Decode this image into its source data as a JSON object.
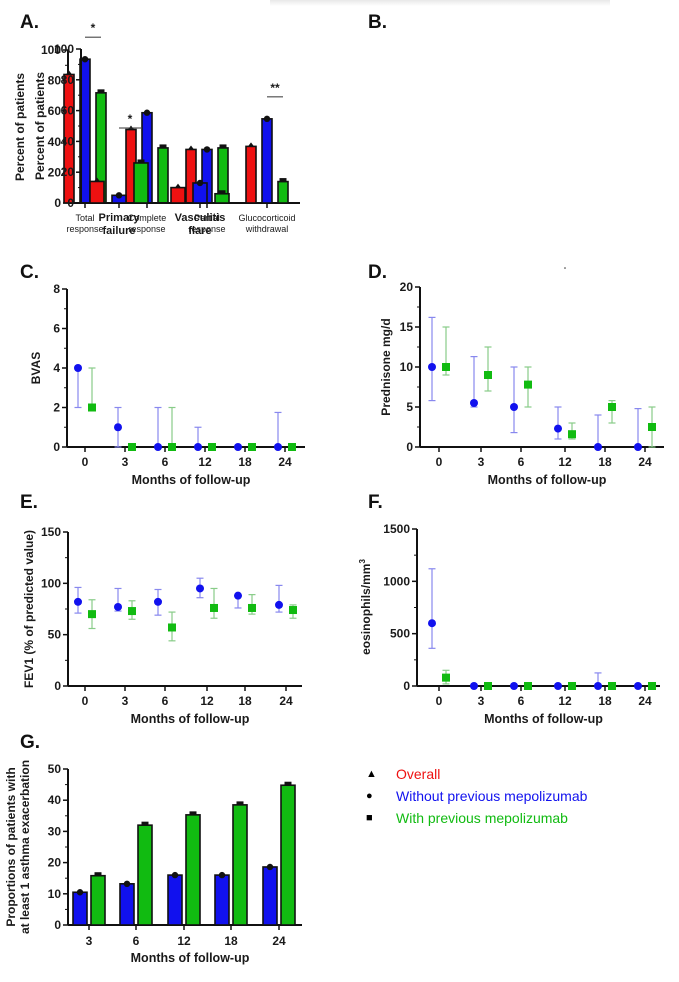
{
  "colors": {
    "overall": "#ee1111",
    "without": "#1111ee",
    "with": "#11bb11",
    "without_err": "#8888ee",
    "with_err": "#88cc88"
  },
  "legend": {
    "items": [
      {
        "marker": "▲",
        "label": "Overall",
        "color": "#ee1111"
      },
      {
        "marker": "●",
        "label": "Without previous mepolizumab",
        "color": "#1111ee"
      },
      {
        "marker": "■",
        "label": "With previous mepolizumab",
        "color": "#11bb11"
      }
    ]
  },
  "chart_data": [
    {
      "id": "A",
      "panel_label": "A.",
      "type": "bar",
      "ylabel": "Percent of patients",
      "xlabel": "",
      "ylim": [
        0,
        100
      ],
      "yticks": [
        0,
        20,
        40,
        60,
        80,
        100
      ],
      "categories": [
        [
          "Total",
          "response"
        ],
        [
          "Complete",
          "response"
        ],
        [
          "Partial",
          "response"
        ],
        [
          "Glucocorticoid",
          "withdrawal"
        ]
      ],
      "series": [
        {
          "name": "Overall",
          "values": [
            84,
            48,
            35,
            37
          ]
        },
        {
          "name": "Without previous mepolizumab",
          "values": [
            94,
            59,
            35,
            55
          ]
        },
        {
          "name": "With previous mepolizumab",
          "values": [
            72,
            36,
            36,
            14
          ]
        }
      ],
      "annotations": [
        {
          "text": "*",
          "category": 0,
          "between": [
            1,
            2
          ]
        },
        {
          "text": "**",
          "category": 3,
          "between": [
            1,
            2
          ]
        }
      ]
    },
    {
      "id": "B",
      "panel_label": "B.",
      "type": "bar",
      "ylabel": "Percent of patients",
      "xlabel": "",
      "ylim": [
        0,
        100
      ],
      "yticks": [
        0,
        20,
        40,
        60,
        80,
        100
      ],
      "categories": [
        [
          "Primary",
          "failure"
        ],
        [
          "Vasculitis",
          "flare"
        ]
      ],
      "series": [
        {
          "name": "Overall",
          "values": [
            14,
            10
          ]
        },
        {
          "name": "Without previous mepolizumab",
          "values": [
            5,
            13
          ]
        },
        {
          "name": "With previous mepolizumab",
          "values": [
            26,
            6
          ]
        }
      ],
      "annotations": [
        {
          "text": "*",
          "category": 0,
          "between": [
            1,
            2
          ]
        }
      ]
    },
    {
      "id": "C",
      "panel_label": "C.",
      "type": "scatter",
      "ylabel": "BVAS",
      "xlabel": "Months of follow-up",
      "ylim": [
        0,
        8
      ],
      "yticks": [
        0,
        2,
        4,
        6,
        8
      ],
      "categories": [
        "0",
        "3",
        "6",
        "12",
        "18",
        "24"
      ],
      "series": [
        {
          "name": "Without previous mepolizumab",
          "values": [
            4,
            1,
            0,
            0,
            0,
            0
          ],
          "err_low": [
            2,
            0,
            0,
            0,
            0,
            0
          ],
          "err_high": [
            4,
            2,
            2,
            1,
            0,
            1.75
          ]
        },
        {
          "name": "With previous mepolizumab",
          "values": [
            2,
            0,
            0,
            0,
            0,
            0
          ],
          "err_low": [
            2,
            0,
            0,
            0,
            0,
            0
          ],
          "err_high": [
            4,
            0,
            2,
            0,
            0,
            0
          ]
        }
      ]
    },
    {
      "id": "D",
      "panel_label": "D.",
      "type": "scatter",
      "ylabel": "Prednisone mg/d",
      "xlabel": "Months of follow-up",
      "ylim": [
        0,
        20
      ],
      "yticks": [
        0,
        5,
        10,
        15,
        20
      ],
      "categories": [
        "0",
        "3",
        "6",
        "12",
        "18",
        "24"
      ],
      "series": [
        {
          "name": "Without previous mepolizumab",
          "values": [
            10,
            5.5,
            5,
            2.3,
            0,
            0
          ],
          "err_low": [
            5.8,
            5,
            1.8,
            1,
            0,
            0
          ],
          "err_high": [
            16.2,
            11.3,
            10,
            5,
            4,
            4.8
          ]
        },
        {
          "name": "With previous mepolizumab",
          "values": [
            10,
            9,
            7.8,
            1.6,
            5,
            2.5
          ],
          "err_low": [
            9,
            7,
            5,
            1,
            3,
            0
          ],
          "err_high": [
            15,
            12.5,
            10,
            3,
            5.8,
            5
          ]
        }
      ]
    },
    {
      "id": "E",
      "panel_label": "E.",
      "type": "scatter",
      "ylabel": "FEV1 (% of predicted value)",
      "xlabel": "Months of follow-up",
      "ylim": [
        0,
        150
      ],
      "yticks": [
        0,
        50,
        100,
        150
      ],
      "categories": [
        "0",
        "3",
        "6",
        "12",
        "18",
        "24"
      ],
      "series": [
        {
          "name": "Without previous mepolizumab",
          "values": [
            82,
            77,
            82,
            95,
            88,
            79
          ],
          "err_low": [
            71,
            73,
            69,
            86,
            76,
            72
          ],
          "err_high": [
            96,
            95,
            94,
            105,
            88,
            98
          ]
        },
        {
          "name": "With previous mepolizumab",
          "values": [
            70,
            73,
            57,
            76,
            76,
            74
          ],
          "err_low": [
            56,
            65,
            44,
            66,
            70,
            66
          ],
          "err_high": [
            84,
            83,
            72,
            95,
            89,
            79
          ]
        }
      ]
    },
    {
      "id": "F",
      "panel_label": "F.",
      "type": "scatter",
      "ylabel": "eosinophils/mm",
      "ylabel_sup": "3",
      "xlabel": "Months of follow-up",
      "ylim": [
        0,
        1500
      ],
      "yticks": [
        0,
        500,
        1000,
        1500
      ],
      "categories": [
        "0",
        "3",
        "6",
        "12",
        "18",
        "24"
      ],
      "series": [
        {
          "name": "Without previous mepolizumab",
          "values": [
            600,
            0,
            0,
            0,
            0,
            0
          ],
          "err_low": [
            360,
            0,
            0,
            0,
            0,
            0
          ],
          "err_high": [
            1120,
            0,
            0,
            0,
            125,
            0
          ]
        },
        {
          "name": "With previous mepolizumab",
          "values": [
            80,
            0,
            0,
            0,
            0,
            0
          ],
          "err_low": [
            20,
            0,
            0,
            0,
            0,
            0
          ],
          "err_high": [
            150,
            0,
            0,
            0,
            0,
            0
          ]
        }
      ]
    },
    {
      "id": "G",
      "panel_label": "G.",
      "type": "bar",
      "ylabel": [
        "Proportions of patients with",
        "at least 1 asthma exacerbation"
      ],
      "xlabel": "Months of follow-up",
      "ylim": [
        0,
        50
      ],
      "yticks": [
        0,
        10,
        20,
        30,
        40,
        50
      ],
      "categories": [
        "3",
        "6",
        "12",
        "18",
        "24"
      ],
      "series": [
        {
          "name": "Without previous mepolizumab",
          "values": [
            10.5,
            13.2,
            16,
            16,
            18.6
          ]
        },
        {
          "name": "With previous mepolizumab",
          "values": [
            15.8,
            32,
            35.3,
            38.5,
            44.8
          ]
        }
      ]
    }
  ]
}
